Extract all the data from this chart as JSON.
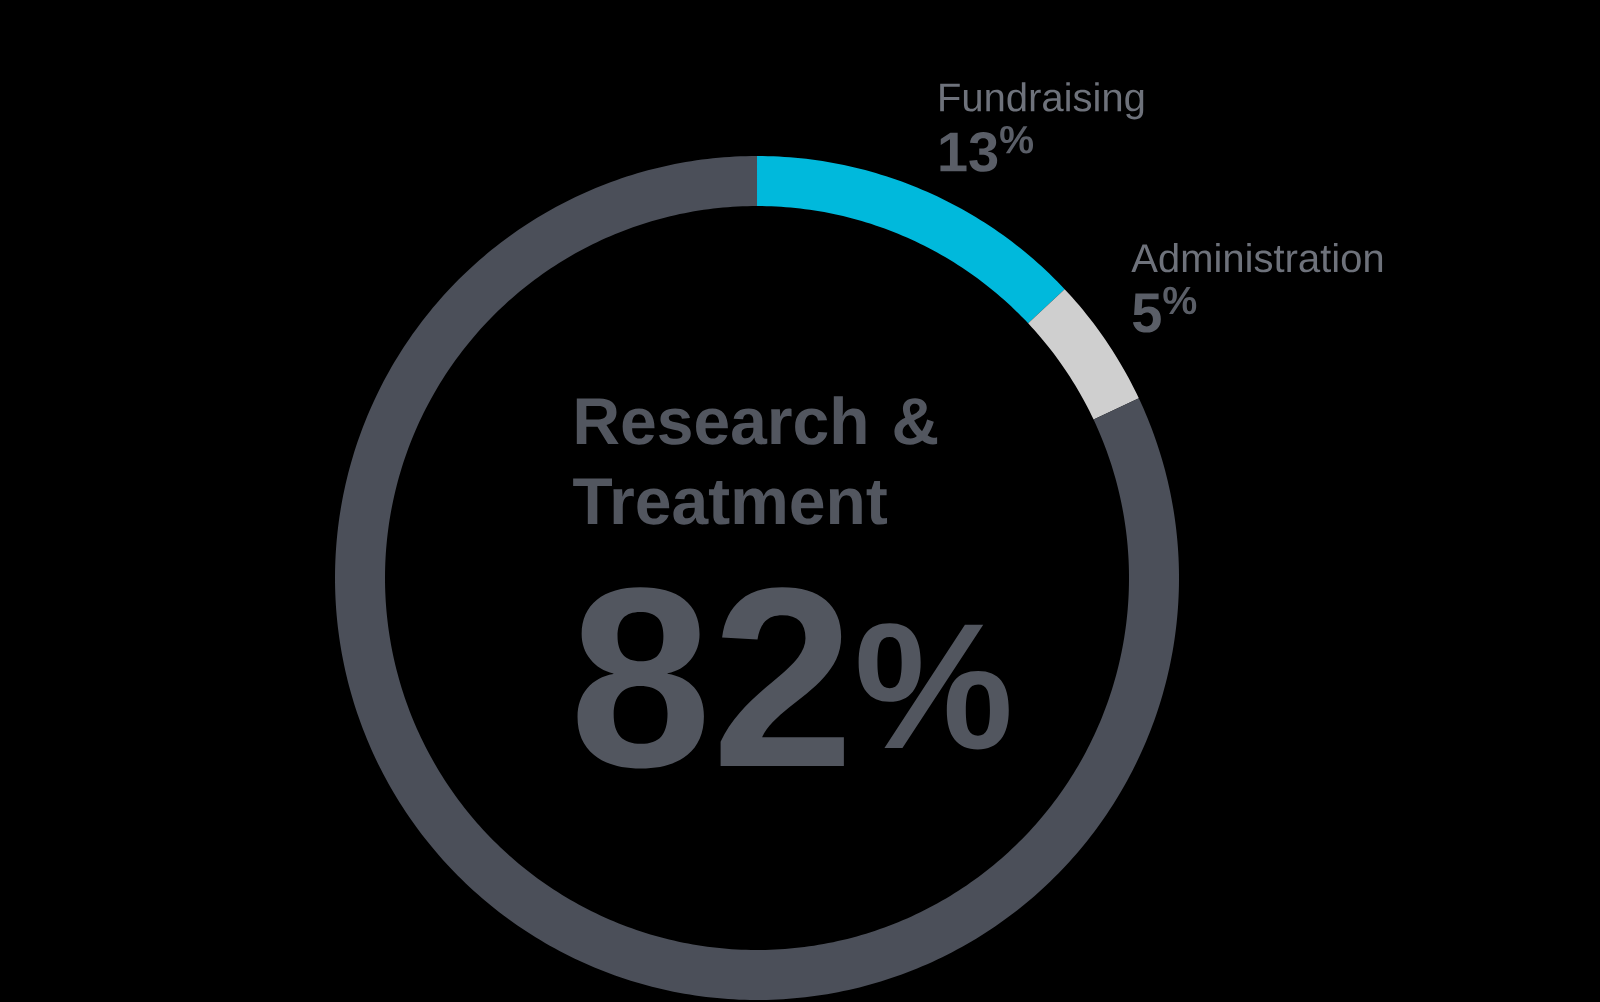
{
  "chart_data": {
    "type": "donut",
    "categories": [
      "Fundraising",
      "Administration",
      "Research & Treatment"
    ],
    "values": [
      13,
      5,
      82
    ],
    "colors": [
      "#00b9dc",
      "#cfcfcf",
      "#4b4f59"
    ],
    "value_labels": [
      "13$^{%}$",
      "5$^{%}$",
      "82$^{%}$"
    ]
  }
}
